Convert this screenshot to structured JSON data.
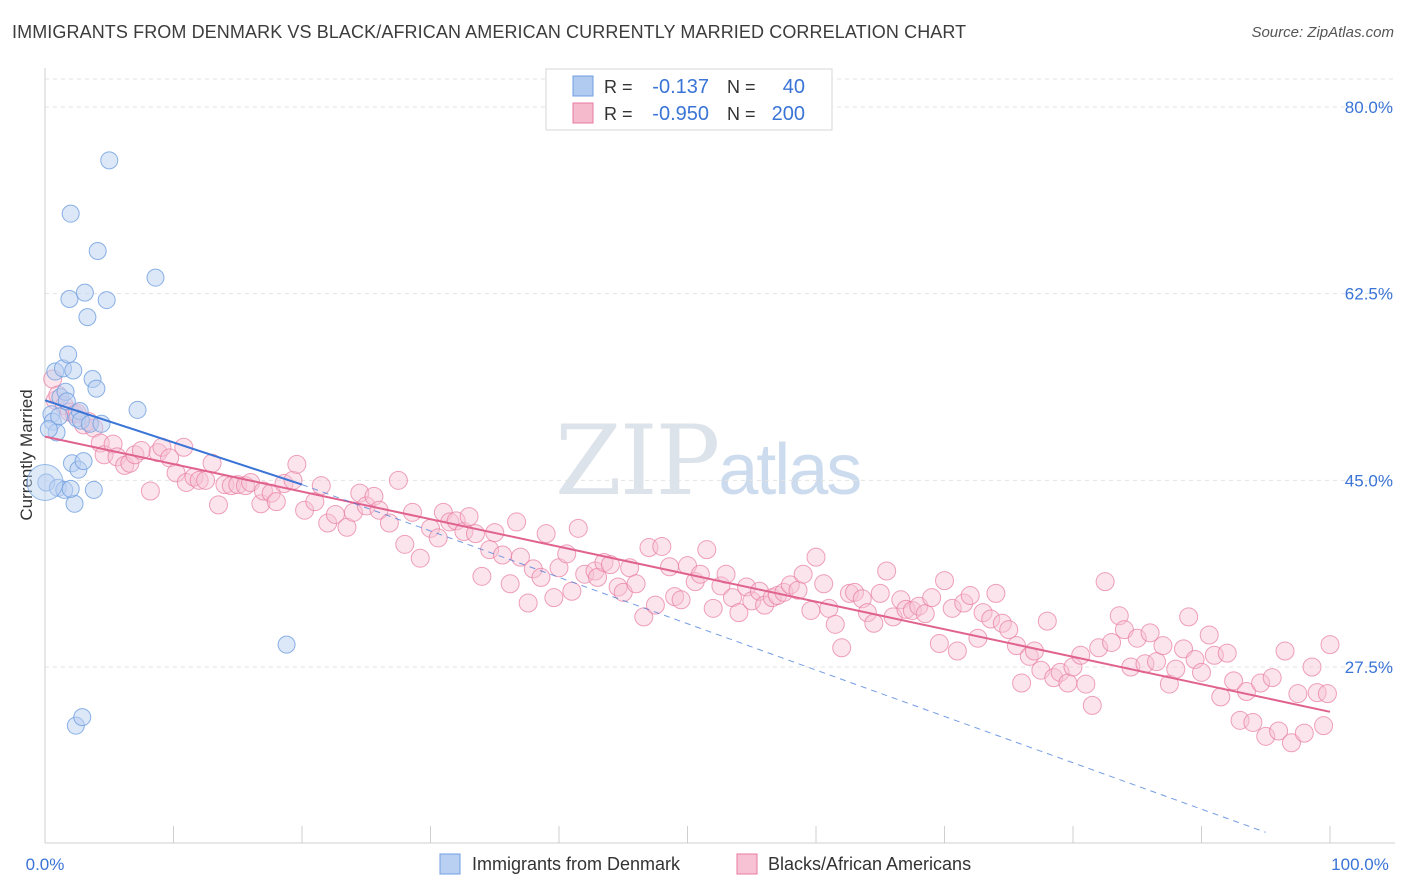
{
  "title": "IMMIGRANTS FROM DENMARK VS BLACK/AFRICAN AMERICAN CURRENTLY MARRIED CORRELATION CHART",
  "source": "Source: ZipAtlas.com",
  "watermark": {
    "zip": "ZIP",
    "atlas": "atlas"
  },
  "legend_top": [
    {
      "r_label": "R =",
      "r_value": "-0.137",
      "n_label": "N =",
      "n_value": "40",
      "color": "#a9c4ee"
    },
    {
      "r_label": "R =",
      "r_value": "-0.950",
      "n_label": "N =",
      "n_value": "200",
      "color": "#f5b3c8"
    }
  ],
  "colors": {
    "blue": "#6f9fe0",
    "blue_fill": "#b9d0f2",
    "blue_line": "#3a74d6",
    "pink": "#e87aa0",
    "pink_fill": "#f7c3d4",
    "pink_line": "#e0628f",
    "axis_text": "#3a74d6"
  },
  "chart_data": {
    "type": "scatter",
    "title": "IMMIGRANTS FROM DENMARK VS BLACK/AFRICAN AMERICAN CURRENTLY MARRIED CORRELATION CHART",
    "xlabel": "",
    "ylabel": "Currently Married",
    "xlim": [
      0,
      100
    ],
    "ylim": [
      11,
      83
    ],
    "x_tick_labels": [
      "0.0%",
      "100.0%"
    ],
    "y_ticks": [
      27.5,
      45.0,
      62.5,
      80.0
    ],
    "y_tick_labels": [
      "27.5%",
      "45.0%",
      "62.5%",
      "80.0%"
    ],
    "grid": true,
    "legend_position": "bottom",
    "series": [
      {
        "name": "Immigrants from Denmark",
        "R": -0.137,
        "N": 40,
        "trend": {
          "x": [
            0,
            20
          ],
          "y": [
            52.5,
            44.6
          ]
        },
        "trend_extended": {
          "x": [
            20,
            95
          ],
          "y": [
            44.6,
            12
          ]
        },
        "points": [
          [
            0.1,
            44.8
          ],
          [
            0.5,
            51.2
          ],
          [
            0.6,
            50.5
          ],
          [
            0.8,
            55.2
          ],
          [
            0.9,
            49.5
          ],
          [
            1.0,
            44.3
          ],
          [
            1.2,
            52.8
          ],
          [
            1.4,
            55.5
          ],
          [
            1.5,
            44.1
          ],
          [
            1.6,
            53.3
          ],
          [
            1.7,
            52.4
          ],
          [
            1.8,
            56.8
          ],
          [
            1.9,
            62.0
          ],
          [
            2.0,
            70.0
          ],
          [
            2.1,
            46.6
          ],
          [
            2.2,
            55.3
          ],
          [
            2.3,
            42.8
          ],
          [
            2.4,
            22.0
          ],
          [
            2.5,
            50.8
          ],
          [
            2.6,
            46.0
          ],
          [
            2.7,
            51.5
          ],
          [
            2.8,
            50.6
          ],
          [
            2.9,
            22.8
          ],
          [
            3.0,
            46.8
          ],
          [
            3.1,
            62.6
          ],
          [
            3.3,
            60.3
          ],
          [
            3.5,
            50.3
          ],
          [
            3.7,
            54.5
          ],
          [
            3.8,
            44.1
          ],
          [
            4.0,
            53.6
          ],
          [
            4.1,
            66.5
          ],
          [
            4.4,
            50.3
          ],
          [
            4.8,
            61.9
          ],
          [
            5.0,
            75.0
          ],
          [
            7.2,
            51.6
          ],
          [
            8.6,
            64.0
          ],
          [
            18.8,
            29.6
          ],
          [
            0.3,
            49.8
          ],
          [
            1.1,
            51.0
          ],
          [
            2.0,
            44.2
          ]
        ]
      },
      {
        "name": "Blacks/African Americans",
        "R": -0.95,
        "N": 200,
        "trend": {
          "x": [
            0,
            100
          ],
          "y": [
            49.1,
            23.3
          ]
        },
        "points": [
          [
            0.6,
            54.5
          ],
          [
            0.8,
            52.5
          ],
          [
            1.0,
            53.0
          ],
          [
            1.5,
            52.0
          ],
          [
            1.9,
            51.4
          ],
          [
            2.3,
            51.2
          ],
          [
            2.5,
            51.3
          ],
          [
            3.0,
            50.2
          ],
          [
            3.4,
            50.5
          ],
          [
            3.8,
            49.9
          ],
          [
            4.3,
            48.5
          ],
          [
            4.6,
            47.4
          ],
          [
            5.3,
            48.4
          ],
          [
            5.6,
            47.2
          ],
          [
            6.2,
            46.4
          ],
          [
            6.6,
            46.6
          ],
          [
            7.0,
            47.4
          ],
          [
            7.5,
            47.8
          ],
          [
            8.2,
            44.0
          ],
          [
            8.8,
            47.6
          ],
          [
            9.1,
            48.1
          ],
          [
            9.7,
            47.1
          ],
          [
            10.2,
            45.7
          ],
          [
            10.8,
            48.1
          ],
          [
            11.0,
            44.8
          ],
          [
            11.6,
            45.3
          ],
          [
            12.0,
            45.0
          ],
          [
            12.5,
            45.0
          ],
          [
            13.0,
            46.6
          ],
          [
            13.5,
            42.7
          ],
          [
            14.0,
            44.6
          ],
          [
            14.5,
            44.5
          ],
          [
            15.0,
            44.6
          ],
          [
            15.6,
            44.5
          ],
          [
            16.0,
            44.8
          ],
          [
            16.8,
            42.8
          ],
          [
            17.0,
            44.0
          ],
          [
            17.6,
            43.8
          ],
          [
            18.0,
            43.0
          ],
          [
            18.6,
            44.7
          ],
          [
            19.3,
            45.0
          ],
          [
            19.6,
            46.5
          ],
          [
            20.2,
            42.2
          ],
          [
            21.0,
            43.0
          ],
          [
            21.5,
            44.5
          ],
          [
            22.0,
            41.0
          ],
          [
            22.6,
            41.8
          ],
          [
            23.5,
            40.6
          ],
          [
            24.0,
            42.0
          ],
          [
            24.5,
            43.8
          ],
          [
            25.0,
            42.6
          ],
          [
            25.6,
            43.5
          ],
          [
            26.0,
            42.2
          ],
          [
            26.8,
            41.0
          ],
          [
            27.5,
            45.0
          ],
          [
            28.0,
            39.0
          ],
          [
            28.6,
            42.0
          ],
          [
            29.2,
            37.7
          ],
          [
            30.0,
            40.5
          ],
          [
            30.6,
            39.6
          ],
          [
            31.0,
            42.0
          ],
          [
            31.5,
            41.1
          ],
          [
            32.0,
            41.2
          ],
          [
            32.6,
            40.2
          ],
          [
            33.0,
            41.6
          ],
          [
            33.5,
            40.0
          ],
          [
            34.0,
            36.0
          ],
          [
            34.6,
            38.5
          ],
          [
            35.0,
            40.1
          ],
          [
            35.6,
            38.0
          ],
          [
            36.2,
            35.3
          ],
          [
            36.7,
            41.1
          ],
          [
            37.0,
            37.8
          ],
          [
            37.6,
            33.5
          ],
          [
            38.0,
            36.7
          ],
          [
            38.6,
            35.9
          ],
          [
            39.0,
            40.0
          ],
          [
            39.6,
            34.0
          ],
          [
            40.0,
            36.8
          ],
          [
            40.6,
            38.1
          ],
          [
            41.0,
            34.6
          ],
          [
            41.5,
            40.5
          ],
          [
            42.0,
            36.2
          ],
          [
            42.8,
            36.5
          ],
          [
            43.0,
            35.9
          ],
          [
            43.5,
            37.3
          ],
          [
            44.0,
            37.1
          ],
          [
            44.6,
            35.0
          ],
          [
            45.0,
            34.5
          ],
          [
            45.5,
            36.8
          ],
          [
            46.0,
            35.3
          ],
          [
            46.6,
            32.2
          ],
          [
            47.0,
            38.7
          ],
          [
            47.5,
            33.3
          ],
          [
            48.0,
            38.8
          ],
          [
            48.6,
            36.9
          ],
          [
            49.0,
            34.1
          ],
          [
            49.5,
            33.8
          ],
          [
            50.0,
            37.0
          ],
          [
            50.6,
            35.5
          ],
          [
            51.0,
            36.2
          ],
          [
            51.5,
            38.5
          ],
          [
            52.0,
            33.0
          ],
          [
            52.6,
            35.1
          ],
          [
            53.0,
            36.2
          ],
          [
            53.5,
            34.0
          ],
          [
            54.0,
            32.6
          ],
          [
            54.6,
            35.0
          ],
          [
            55.0,
            33.7
          ],
          [
            55.6,
            34.6
          ],
          [
            56.0,
            33.3
          ],
          [
            56.6,
            34.0
          ],
          [
            57.0,
            34.2
          ],
          [
            57.5,
            34.5
          ],
          [
            58.0,
            35.2
          ],
          [
            58.6,
            34.7
          ],
          [
            59.0,
            36.2
          ],
          [
            59.6,
            32.8
          ],
          [
            60.0,
            37.8
          ],
          [
            60.6,
            35.3
          ],
          [
            61.0,
            33.0
          ],
          [
            61.5,
            31.5
          ],
          [
            62.0,
            29.3
          ],
          [
            62.6,
            34.4
          ],
          [
            63.0,
            34.5
          ],
          [
            63.6,
            33.9
          ],
          [
            64.0,
            32.6
          ],
          [
            64.5,
            31.6
          ],
          [
            65.0,
            34.4
          ],
          [
            65.5,
            36.5
          ],
          [
            66.0,
            32.2
          ],
          [
            66.6,
            33.8
          ],
          [
            67.0,
            32.9
          ],
          [
            67.5,
            32.8
          ],
          [
            68.0,
            33.2
          ],
          [
            68.5,
            32.5
          ],
          [
            69.0,
            34.0
          ],
          [
            69.6,
            29.7
          ],
          [
            70.0,
            35.6
          ],
          [
            70.6,
            33.0
          ],
          [
            71.0,
            29.0
          ],
          [
            71.5,
            33.5
          ],
          [
            72.0,
            34.2
          ],
          [
            72.6,
            30.2
          ],
          [
            73.0,
            32.6
          ],
          [
            73.6,
            32.0
          ],
          [
            74.0,
            34.4
          ],
          [
            74.5,
            31.6
          ],
          [
            75.0,
            31.0
          ],
          [
            75.6,
            29.5
          ],
          [
            76.0,
            26.0
          ],
          [
            76.6,
            28.5
          ],
          [
            77.0,
            29.0
          ],
          [
            77.5,
            27.2
          ],
          [
            78.0,
            31.8
          ],
          [
            78.5,
            26.5
          ],
          [
            79.0,
            27.0
          ],
          [
            79.6,
            26.0
          ],
          [
            80.0,
            27.5
          ],
          [
            80.6,
            28.6
          ],
          [
            81.0,
            25.9
          ],
          [
            81.5,
            23.9
          ],
          [
            82.0,
            29.3
          ],
          [
            82.5,
            35.5
          ],
          [
            83.0,
            29.8
          ],
          [
            83.6,
            32.3
          ],
          [
            84.0,
            31.0
          ],
          [
            84.5,
            27.5
          ],
          [
            85.0,
            30.2
          ],
          [
            85.6,
            27.8
          ],
          [
            86.0,
            30.7
          ],
          [
            86.5,
            28.0
          ],
          [
            87.0,
            29.5
          ],
          [
            87.5,
            25.9
          ],
          [
            88.0,
            27.3
          ],
          [
            88.6,
            29.2
          ],
          [
            89.0,
            32.2
          ],
          [
            89.5,
            28.2
          ],
          [
            90.0,
            27.0
          ],
          [
            90.6,
            30.5
          ],
          [
            91.0,
            28.6
          ],
          [
            91.5,
            24.7
          ],
          [
            92.0,
            28.8
          ],
          [
            92.5,
            26.2
          ],
          [
            93.0,
            22.5
          ],
          [
            93.5,
            25.2
          ],
          [
            94.0,
            22.3
          ],
          [
            94.6,
            26.0
          ],
          [
            95.0,
            21.0
          ],
          [
            95.5,
            26.5
          ],
          [
            96.0,
            21.5
          ],
          [
            96.5,
            29.0
          ],
          [
            97.0,
            20.4
          ],
          [
            97.5,
            25.0
          ],
          [
            98.0,
            21.3
          ],
          [
            98.6,
            27.5
          ],
          [
            99.0,
            25.1
          ],
          [
            99.5,
            22.0
          ],
          [
            100.0,
            29.6
          ],
          [
            99.8,
            25.0
          ]
        ]
      }
    ]
  }
}
